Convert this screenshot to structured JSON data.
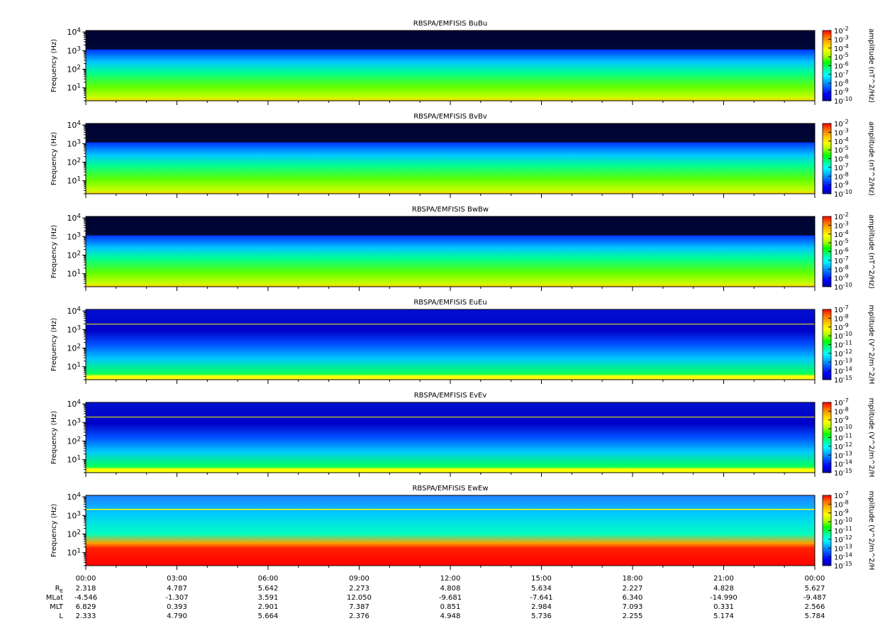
{
  "colors": {
    "spectrum": [
      "#0000a8",
      "#0000ff",
      "#0050ff",
      "#00a8ff",
      "#00ffff",
      "#00ff90",
      "#00ff00",
      "#a8ff00",
      "#ffff00",
      "#ffc000",
      "#ff7000",
      "#ff0000"
    ],
    "background": "#000000",
    "axis": "#000000"
  },
  "chart_data": [
    {
      "type": "heatmap",
      "title": "RBSPA/EMFISIS  BuBu",
      "ylabel": "Frequency (Hz)",
      "yscale": "log",
      "ylim": [
        2,
        12000
      ],
      "y_ticks": [
        {
          "base": "10",
          "exp": "1",
          "value": 10
        },
        {
          "base": "10",
          "exp": "2",
          "value": 100
        },
        {
          "base": "10",
          "exp": "3",
          "value": 1000
        },
        {
          "base": "10",
          "exp": "4",
          "value": 10000
        }
      ],
      "colorbar": {
        "label": "amplitude (nT^2/Hz)",
        "scale": "log",
        "range": [
          -10,
          -2
        ],
        "ticks": [
          {
            "base": "10",
            "exp": "-2",
            "value": -2
          },
          {
            "base": "10",
            "exp": "-3",
            "value": -3
          },
          {
            "base": "10",
            "exp": "-4",
            "value": -4
          },
          {
            "base": "10",
            "exp": "-5",
            "value": -5
          },
          {
            "base": "10",
            "exp": "-6",
            "value": -6
          },
          {
            "base": "10",
            "exp": "-7",
            "value": -7
          },
          {
            "base": "10",
            "exp": "-8",
            "value": -8
          },
          {
            "base": "10",
            "exp": "-9",
            "value": -9
          },
          {
            "base": "10",
            "exp": "-10",
            "value": -10
          }
        ]
      }
    },
    {
      "type": "heatmap",
      "title": "RBSPA/EMFISIS  BvBv",
      "ylabel": "Frequency (Hz)",
      "yscale": "log",
      "ylim": [
        2,
        12000
      ],
      "y_ticks": [
        {
          "base": "10",
          "exp": "1",
          "value": 10
        },
        {
          "base": "10",
          "exp": "2",
          "value": 100
        },
        {
          "base": "10",
          "exp": "3",
          "value": 1000
        },
        {
          "base": "10",
          "exp": "4",
          "value": 10000
        }
      ],
      "colorbar": {
        "label": "amplitude (nT^2/Hz)",
        "scale": "log",
        "range": [
          -10,
          -2
        ],
        "ticks": [
          {
            "base": "10",
            "exp": "-2",
            "value": -2
          },
          {
            "base": "10",
            "exp": "-3",
            "value": -3
          },
          {
            "base": "10",
            "exp": "-4",
            "value": -4
          },
          {
            "base": "10",
            "exp": "-5",
            "value": -5
          },
          {
            "base": "10",
            "exp": "-6",
            "value": -6
          },
          {
            "base": "10",
            "exp": "-7",
            "value": -7
          },
          {
            "base": "10",
            "exp": "-8",
            "value": -8
          },
          {
            "base": "10",
            "exp": "-9",
            "value": -9
          },
          {
            "base": "10",
            "exp": "-10",
            "value": -10
          }
        ]
      }
    },
    {
      "type": "heatmap",
      "title": "RBSPA/EMFISIS  BwBw",
      "ylabel": "Frequency (Hz)",
      "yscale": "log",
      "ylim": [
        2,
        12000
      ],
      "y_ticks": [
        {
          "base": "10",
          "exp": "1",
          "value": 10
        },
        {
          "base": "10",
          "exp": "2",
          "value": 100
        },
        {
          "base": "10",
          "exp": "3",
          "value": 1000
        },
        {
          "base": "10",
          "exp": "4",
          "value": 10000
        }
      ],
      "colorbar": {
        "label": "amplitude (nT^2/Hz)",
        "scale": "log",
        "range": [
          -10,
          -2
        ],
        "ticks": [
          {
            "base": "10",
            "exp": "-2",
            "value": -2
          },
          {
            "base": "10",
            "exp": "-3",
            "value": -3
          },
          {
            "base": "10",
            "exp": "-4",
            "value": -4
          },
          {
            "base": "10",
            "exp": "-5",
            "value": -5
          },
          {
            "base": "10",
            "exp": "-6",
            "value": -6
          },
          {
            "base": "10",
            "exp": "-7",
            "value": -7
          },
          {
            "base": "10",
            "exp": "-8",
            "value": -8
          },
          {
            "base": "10",
            "exp": "-9",
            "value": -9
          },
          {
            "base": "10",
            "exp": "-10",
            "value": -10
          }
        ]
      }
    },
    {
      "type": "heatmap",
      "title": "RBSPA/EMFISIS  EuEu",
      "ylabel": "Frequency (Hz)",
      "yscale": "log",
      "ylim": [
        2,
        12000
      ],
      "y_ticks": [
        {
          "base": "10",
          "exp": "1",
          "value": 10
        },
        {
          "base": "10",
          "exp": "2",
          "value": 100
        },
        {
          "base": "10",
          "exp": "3",
          "value": 1000
        },
        {
          "base": "10",
          "exp": "4",
          "value": 10000
        }
      ],
      "colorbar": {
        "label": "mplitude (V^2/m^2/H",
        "scale": "log",
        "range": [
          -15,
          -7
        ],
        "ticks": [
          {
            "base": "10",
            "exp": "-7",
            "value": -7
          },
          {
            "base": "10",
            "exp": "-8",
            "value": -8
          },
          {
            "base": "10",
            "exp": "-9",
            "value": -9
          },
          {
            "base": "10",
            "exp": "-10",
            "value": -10
          },
          {
            "base": "10",
            "exp": "-11",
            "value": -11
          },
          {
            "base": "10",
            "exp": "-12",
            "value": -12
          },
          {
            "base": "10",
            "exp": "-13",
            "value": -13
          },
          {
            "base": "10",
            "exp": "-14",
            "value": -14
          },
          {
            "base": "10",
            "exp": "-15",
            "value": -15
          }
        ]
      }
    },
    {
      "type": "heatmap",
      "title": "RBSPA/EMFISIS  EvEv",
      "ylabel": "Frequency (Hz)",
      "yscale": "log",
      "ylim": [
        2,
        12000
      ],
      "y_ticks": [
        {
          "base": "10",
          "exp": "1",
          "value": 10
        },
        {
          "base": "10",
          "exp": "2",
          "value": 100
        },
        {
          "base": "10",
          "exp": "3",
          "value": 1000
        },
        {
          "base": "10",
          "exp": "4",
          "value": 10000
        }
      ],
      "colorbar": {
        "label": "mplitude (V^2/m^2/H",
        "scale": "log",
        "range": [
          -15,
          -7
        ],
        "ticks": [
          {
            "base": "10",
            "exp": "-7",
            "value": -7
          },
          {
            "base": "10",
            "exp": "-8",
            "value": -8
          },
          {
            "base": "10",
            "exp": "-9",
            "value": -9
          },
          {
            "base": "10",
            "exp": "-10",
            "value": -10
          },
          {
            "base": "10",
            "exp": "-11",
            "value": -11
          },
          {
            "base": "10",
            "exp": "-12",
            "value": -12
          },
          {
            "base": "10",
            "exp": "-13",
            "value": -13
          },
          {
            "base": "10",
            "exp": "-14",
            "value": -14
          },
          {
            "base": "10",
            "exp": "-15",
            "value": -15
          }
        ]
      }
    },
    {
      "type": "heatmap",
      "title": "RBSPA/EMFISIS  EwEw",
      "ylabel": "Frequency (Hz)",
      "yscale": "log",
      "ylim": [
        2,
        12000
      ],
      "y_ticks": [
        {
          "base": "10",
          "exp": "1",
          "value": 10
        },
        {
          "base": "10",
          "exp": "2",
          "value": 100
        },
        {
          "base": "10",
          "exp": "3",
          "value": 1000
        },
        {
          "base": "10",
          "exp": "4",
          "value": 10000
        }
      ],
      "colorbar": {
        "label": "mplitude (V^2/m^2/H",
        "scale": "log",
        "range": [
          -15,
          -7
        ],
        "ticks": [
          {
            "base": "10",
            "exp": "-7",
            "value": -7
          },
          {
            "base": "10",
            "exp": "-8",
            "value": -8
          },
          {
            "base": "10",
            "exp": "-9",
            "value": -9
          },
          {
            "base": "10",
            "exp": "-10",
            "value": -10
          },
          {
            "base": "10",
            "exp": "-11",
            "value": -11
          },
          {
            "base": "10",
            "exp": "-12",
            "value": -12
          },
          {
            "base": "10",
            "exp": "-13",
            "value": -13
          },
          {
            "base": "10",
            "exp": "-14",
            "value": -14
          },
          {
            "base": "10",
            "exp": "-15",
            "value": -15
          }
        ]
      }
    }
  ],
  "x_axis": {
    "ticks": [
      "00:00",
      "03:00",
      "06:00",
      "09:00",
      "12:00",
      "15:00",
      "18:00",
      "21:00",
      "00:00"
    ],
    "range_hours": [
      0,
      24
    ],
    "rows": [
      {
        "label": "R",
        "sub": "E",
        "values": [
          "2.318",
          "4.787",
          "5.642",
          "2.273",
          "4.808",
          "5.634",
          "2.227",
          "4.828",
          "5.627"
        ]
      },
      {
        "label": "MLat",
        "sub": "",
        "values": [
          "-4.546",
          "-1.307",
          "3.591",
          "12.050",
          "-9.681",
          "-7.641",
          "6.340",
          "-14.990",
          "-9.487"
        ]
      },
      {
        "label": "MLT",
        "sub": "",
        "values": [
          "6.829",
          "0.393",
          "2.901",
          "7.387",
          "0.851",
          "2.984",
          "7.093",
          "0.331",
          "2.566"
        ]
      },
      {
        "label": "L",
        "sub": "",
        "values": [
          "2.333",
          "4.790",
          "5.664",
          "2.376",
          "4.948",
          "5.736",
          "2.255",
          "5.174",
          "5.784"
        ]
      }
    ]
  }
}
